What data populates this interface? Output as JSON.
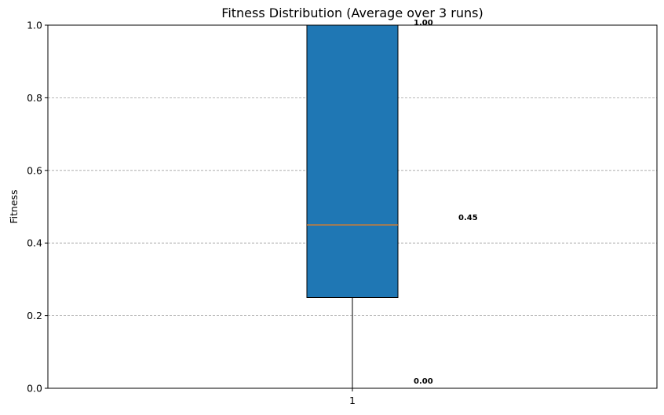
{
  "chart_data": {
    "type": "box",
    "title": "Fitness Distribution (Average over 3 runs)",
    "xlabel": "",
    "ylabel": "Fitness",
    "ylim": [
      0.0,
      1.0
    ],
    "yticks": [
      "0.0",
      "0.2",
      "0.4",
      "0.6",
      "0.8",
      "1.0"
    ],
    "categories": [
      "1"
    ],
    "boxes": [
      {
        "category": "1",
        "whisker_low": 0.0,
        "q1": 0.25,
        "median": 0.45,
        "q3": 1.0,
        "whisker_high": 1.0
      }
    ],
    "annotations": [
      {
        "text": "1.00",
        "value": 1.0
      },
      {
        "text": "0.45",
        "value": 0.45
      },
      {
        "text": "0.00",
        "value": 0.0
      }
    ],
    "grid": "y-dashed",
    "colors": {
      "box_fill": "#1f77b4",
      "median": "#ff7f0e",
      "grid": "#a0a0a0"
    }
  }
}
